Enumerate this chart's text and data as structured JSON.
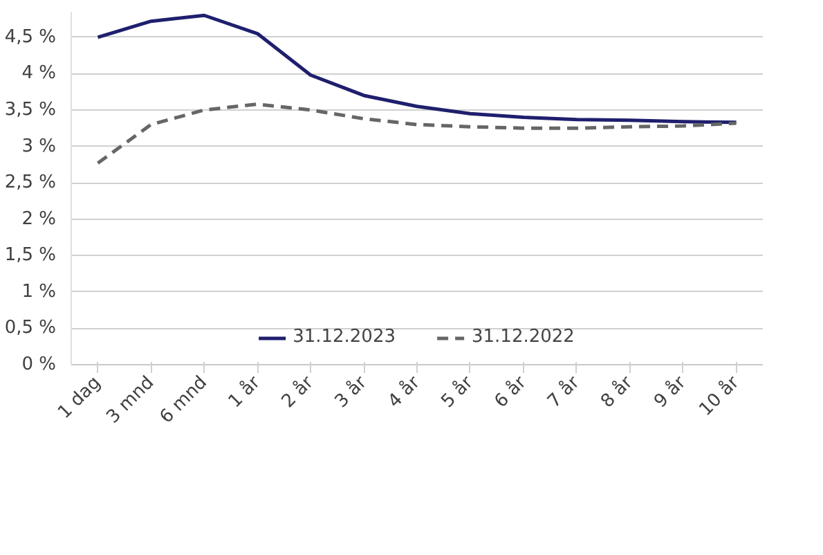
{
  "chart_data": {
    "type": "line",
    "categories": [
      "1 dag",
      "3 mnd",
      "6 mnd",
      "1 år",
      "2 år",
      "3 år",
      "4 år",
      "5 år",
      "6 år",
      "7 år",
      "8 år",
      "9 år",
      "10 år"
    ],
    "series": [
      {
        "name": "31.12.2023",
        "color": "#1f1f6e",
        "line_style": "solid",
        "values": [
          4.5,
          4.72,
          4.8,
          4.55,
          3.98,
          3.7,
          3.55,
          3.45,
          3.4,
          3.37,
          3.36,
          3.34,
          3.33
        ]
      },
      {
        "name": "31.12.2022",
        "color": "#666666",
        "line_style": "dashed",
        "values": [
          2.77,
          3.3,
          3.5,
          3.58,
          3.5,
          3.38,
          3.3,
          3.27,
          3.25,
          3.25,
          3.27,
          3.28,
          3.32
        ]
      }
    ],
    "ylim": [
      0,
      4.85
    ],
    "yticks": [
      {
        "value": 0,
        "label": "0 %"
      },
      {
        "value": 0.5,
        "label": "0,5 %"
      },
      {
        "value": 1,
        "label": "1 %"
      },
      {
        "value": 1.5,
        "label": "1,5 %"
      },
      {
        "value": 2,
        "label": "2 %"
      },
      {
        "value": 2.5,
        "label": "2,5 %"
      },
      {
        "value": 3,
        "label": "3 %"
      },
      {
        "value": 3.5,
        "label": "3,5 %"
      },
      {
        "value": 4,
        "label": "4 %"
      },
      {
        "value": 4.5,
        "label": "4,5 %"
      }
    ],
    "grid": "y",
    "legend": "bottom",
    "marker": "none"
  }
}
